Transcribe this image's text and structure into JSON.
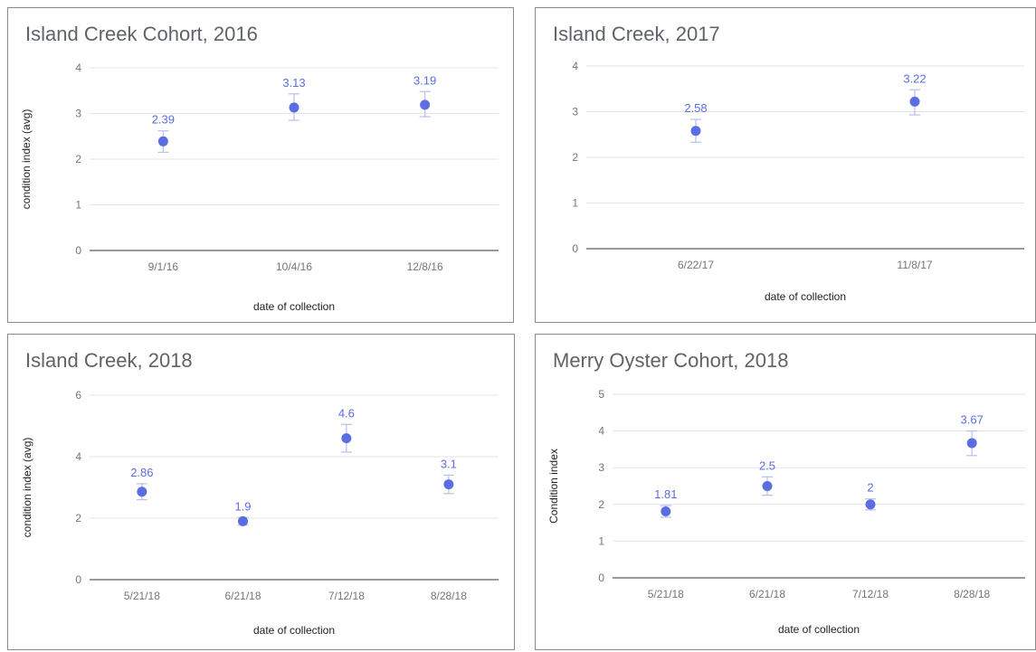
{
  "chart_data": [
    {
      "type": "scatter",
      "title": "Island Creek Cohort, 2016",
      "xlabel": "date of collection",
      "ylabel": "condition index (avg)",
      "categories": [
        "9/1/16",
        "10/4/16",
        "12/8/16"
      ],
      "values": [
        2.39,
        3.13,
        3.19
      ],
      "data_labels": [
        "2.39",
        "3.13",
        "3.19"
      ],
      "error_bars": [
        [
          2.15,
          2.62
        ],
        [
          2.85,
          3.43
        ],
        [
          2.93,
          3.48
        ]
      ],
      "ylim": [
        0,
        4
      ],
      "yticks": [
        0,
        1,
        2,
        3,
        4
      ],
      "grid": true,
      "color": "#5b6ee1"
    },
    {
      "type": "scatter",
      "title": "Island Creek, 2017",
      "xlabel": "date of collection",
      "ylabel": "",
      "categories": [
        "6/22/17",
        "11/8/17"
      ],
      "values": [
        2.58,
        3.22
      ],
      "data_labels": [
        "2.58",
        "3.22"
      ],
      "error_bars": [
        [
          2.33,
          2.83
        ],
        [
          2.93,
          3.48
        ]
      ],
      "ylim": [
        0,
        4
      ],
      "yticks": [
        0,
        1,
        2,
        3,
        4
      ],
      "grid": true,
      "color": "#5b6ee1"
    },
    {
      "type": "scatter",
      "title": "Island Creek, 2018",
      "xlabel": "date of collection",
      "ylabel": "condition index (avg)",
      "categories": [
        "5/21/18",
        "6/21/18",
        "7/12/18",
        "8/28/18"
      ],
      "values": [
        2.86,
        1.9,
        4.6,
        3.1
      ],
      "data_labels": [
        "2.86",
        "1.9",
        "4.6",
        "3.1"
      ],
      "error_bars": [
        [
          2.6,
          3.12
        ],
        [
          1.78,
          2.02
        ],
        [
          4.15,
          5.05
        ],
        [
          2.8,
          3.4
        ]
      ],
      "ylim": [
        0,
        6
      ],
      "yticks": [
        0,
        2,
        4,
        6
      ],
      "grid": true,
      "color": "#5b6ee1"
    },
    {
      "type": "scatter",
      "title": "Merry Oyster Cohort, 2018",
      "xlabel": "date of collection",
      "ylabel": "Condition index",
      "categories": [
        "5/21/18",
        "6/21/18",
        "7/12/18",
        "8/28/18"
      ],
      "values": [
        1.81,
        2.5,
        2,
        3.67
      ],
      "data_labels": [
        "1.81",
        "2.5",
        "2",
        "3.67"
      ],
      "error_bars": [
        [
          1.65,
          1.97
        ],
        [
          2.25,
          2.75
        ],
        [
          1.85,
          2.15
        ],
        [
          3.33,
          4.0
        ]
      ],
      "ylim": [
        0,
        5
      ],
      "yticks": [
        0,
        1,
        2,
        3,
        4,
        5
      ],
      "grid": true,
      "color": "#5b6ee1"
    }
  ]
}
